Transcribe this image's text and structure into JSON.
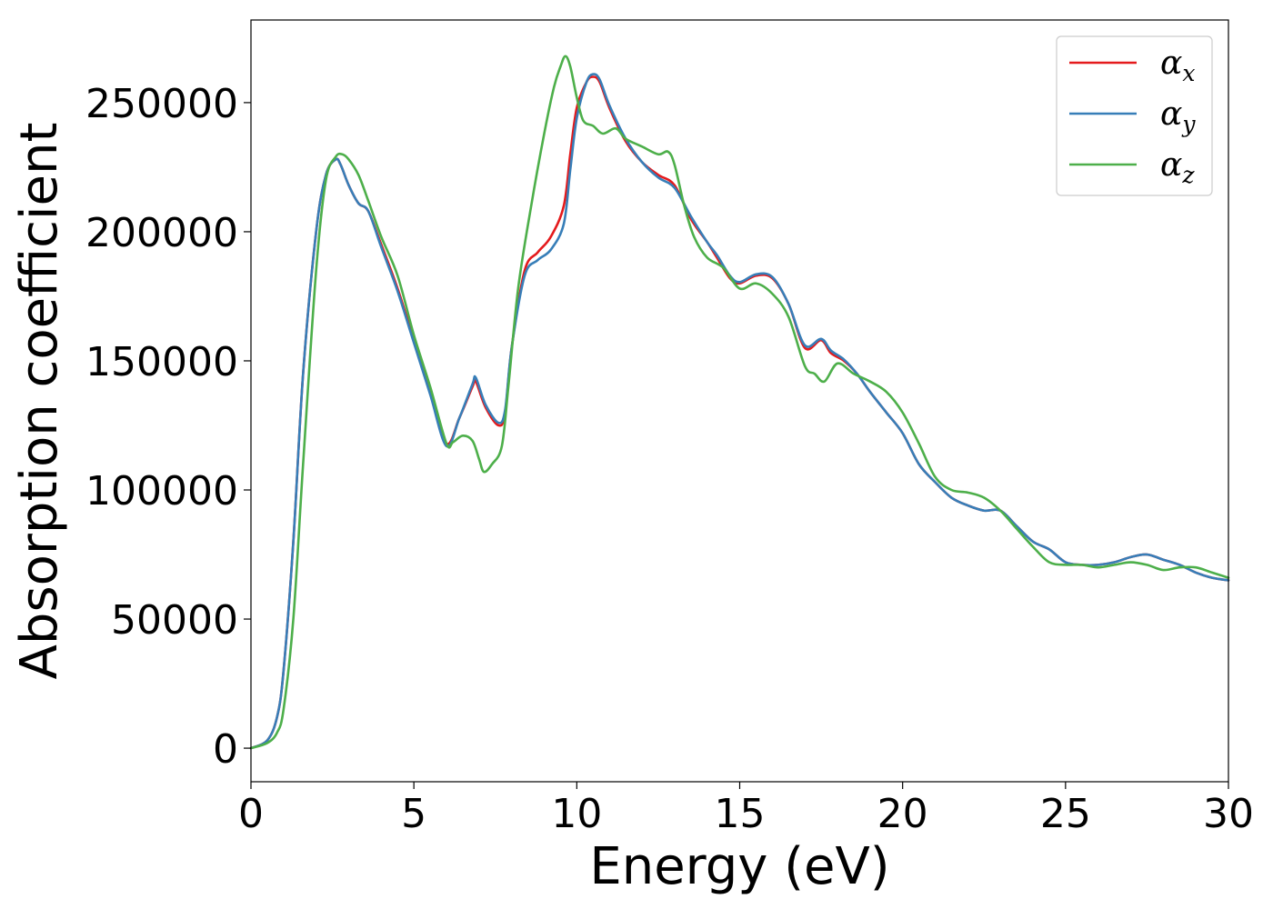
{
  "chart_data": {
    "type": "line",
    "title": "",
    "xlabel": "Energy (eV)",
    "ylabel": "Absorption coefficient",
    "xlim": [
      0,
      30
    ],
    "ylim": [
      -13000,
      282000
    ],
    "xticks": [
      0,
      5,
      10,
      15,
      20,
      25,
      30
    ],
    "yticks": [
      0,
      50000,
      100000,
      150000,
      200000,
      250000
    ],
    "xtick_labels": [
      "0",
      "5",
      "10",
      "15",
      "20",
      "25",
      "30"
    ],
    "ytick_labels": [
      "0",
      "50000",
      "100000",
      "150000",
      "200000",
      "250000"
    ],
    "grid": false,
    "legend_position": "top-right",
    "series": [
      {
        "name": "αx",
        "symbol": "α",
        "subscript": "x",
        "color": "#e41a1c",
        "x": [
          0,
          0.5,
          0.8,
          1.0,
          1.3,
          1.6,
          2.0,
          2.3,
          2.6,
          2.75,
          3.0,
          3.3,
          3.6,
          4.0,
          4.5,
          5.0,
          5.5,
          6.0,
          6.4,
          6.8,
          6.9,
          7.2,
          7.6,
          7.8,
          8.0,
          8.4,
          8.8,
          9.2,
          9.6,
          9.8,
          10.0,
          10.3,
          10.5,
          10.7,
          11.0,
          11.5,
          12.0,
          12.5,
          13.0,
          13.5,
          14.0,
          14.3,
          14.7,
          15.0,
          15.5,
          16.0,
          16.5,
          17.0,
          17.5,
          17.8,
          18.2,
          18.6,
          19.0,
          19.5,
          20.0,
          20.5,
          21.0,
          21.5,
          22.0,
          22.5,
          23.0,
          23.5,
          24.0,
          24.5,
          25.0,
          25.5,
          26.0,
          26.5,
          27.0,
          27.5,
          28.0,
          28.5,
          29.0,
          29.5,
          30.0
        ],
        "y": [
          0,
          3000,
          12000,
          30000,
          80000,
          145000,
          200000,
          222000,
          228000,
          226000,
          218000,
          211000,
          208000,
          195000,
          178000,
          158000,
          138000,
          118000,
          128000,
          140000,
          142000,
          132000,
          125000,
          130000,
          155000,
          185000,
          192000,
          198000,
          210000,
          230000,
          248000,
          258000,
          260000,
          258000,
          248000,
          235000,
          227000,
          222000,
          218000,
          205000,
          196000,
          190000,
          182000,
          180000,
          183000,
          182000,
          172000,
          155000,
          158000,
          153000,
          150000,
          145000,
          138000,
          130000,
          122000,
          110000,
          103000,
          97000,
          94000,
          92000,
          92000,
          86000,
          80000,
          77000,
          72000,
          71000,
          71000,
          72000,
          74000,
          75000,
          73000,
          71000,
          68000,
          66000,
          65000
        ]
      },
      {
        "name": "αy",
        "symbol": "α",
        "subscript": "y",
        "color": "#377eb8",
        "x": [
          0,
          0.5,
          0.8,
          1.0,
          1.3,
          1.6,
          2.0,
          2.3,
          2.6,
          2.75,
          3.0,
          3.3,
          3.6,
          4.0,
          4.5,
          5.0,
          5.5,
          6.0,
          6.4,
          6.8,
          6.9,
          7.2,
          7.6,
          7.8,
          8.0,
          8.4,
          8.8,
          9.2,
          9.6,
          9.8,
          10.0,
          10.3,
          10.5,
          10.7,
          11.0,
          11.5,
          12.0,
          12.5,
          13.0,
          13.5,
          14.0,
          14.3,
          14.7,
          15.0,
          15.5,
          16.0,
          16.5,
          17.0,
          17.5,
          17.8,
          18.2,
          18.6,
          19.0,
          19.5,
          20.0,
          20.5,
          21.0,
          21.5,
          22.0,
          22.5,
          23.0,
          23.5,
          24.0,
          24.5,
          25.0,
          25.5,
          26.0,
          26.5,
          27.0,
          27.5,
          28.0,
          28.5,
          29.0,
          29.5,
          30.0
        ],
        "y": [
          0,
          3000,
          12000,
          30000,
          80000,
          145000,
          200000,
          222000,
          228000,
          226000,
          218000,
          211000,
          208000,
          194000,
          177000,
          157000,
          137000,
          117000,
          128000,
          141000,
          143500,
          133000,
          126000,
          131000,
          155000,
          183000,
          189000,
          193000,
          203000,
          224000,
          244000,
          258000,
          261000,
          259000,
          249000,
          236000,
          227000,
          221000,
          217000,
          206000,
          196000,
          191000,
          183000,
          180500,
          183500,
          182500,
          172000,
          156000,
          158500,
          154000,
          150500,
          145000,
          138000,
          130000,
          122000,
          110000,
          103000,
          97000,
          94000,
          92000,
          92000,
          86000,
          80000,
          77000,
          72000,
          71000,
          71000,
          72000,
          74000,
          75000,
          73000,
          71000,
          68000,
          66000,
          65000
        ]
      },
      {
        "name": "αz",
        "symbol": "α",
        "subscript": "z",
        "color": "#4daf4a",
        "x": [
          0,
          0.5,
          0.8,
          1.0,
          1.3,
          1.6,
          2.0,
          2.3,
          2.6,
          2.8,
          3.0,
          3.3,
          3.6,
          4.0,
          4.5,
          5.0,
          5.5,
          6.0,
          6.2,
          6.5,
          6.8,
          7.0,
          7.15,
          7.4,
          7.7,
          7.9,
          8.2,
          8.6,
          9.0,
          9.3,
          9.5,
          9.65,
          9.8,
          10.0,
          10.2,
          10.5,
          10.8,
          11.2,
          11.5,
          12.0,
          12.5,
          12.8,
          13.0,
          13.3,
          13.6,
          14.0,
          14.5,
          15.0,
          15.5,
          16.0,
          16.5,
          17.0,
          17.3,
          17.6,
          18.0,
          18.5,
          19.0,
          19.5,
          20.0,
          20.5,
          21.0,
          21.5,
          22.0,
          22.5,
          23.0,
          23.5,
          24.0,
          24.5,
          25.0,
          25.5,
          26.0,
          26.5,
          27.0,
          27.5,
          28.0,
          28.5,
          29.0,
          29.5,
          30.0
        ],
        "y": [
          0,
          2000,
          6000,
          15000,
          50000,
          110000,
          185000,
          220000,
          229000,
          230000,
          228000,
          222000,
          212000,
          198000,
          183000,
          160000,
          140000,
          118000,
          118500,
          121000,
          119000,
          112000,
          107000,
          110000,
          117000,
          140000,
          178000,
          210000,
          238000,
          256000,
          264000,
          268000,
          264000,
          252000,
          243000,
          241000,
          238000,
          240000,
          236000,
          233000,
          230000,
          231000,
          226000,
          210000,
          198000,
          190000,
          186000,
          178000,
          180000,
          176000,
          167000,
          148000,
          145000,
          142000,
          149000,
          145000,
          142000,
          138000,
          130000,
          118000,
          105000,
          100000,
          99000,
          97000,
          92000,
          85000,
          78000,
          72000,
          71000,
          71000,
          70000,
          71000,
          72000,
          71000,
          69000,
          70000,
          70000,
          68000,
          66000
        ]
      }
    ]
  }
}
